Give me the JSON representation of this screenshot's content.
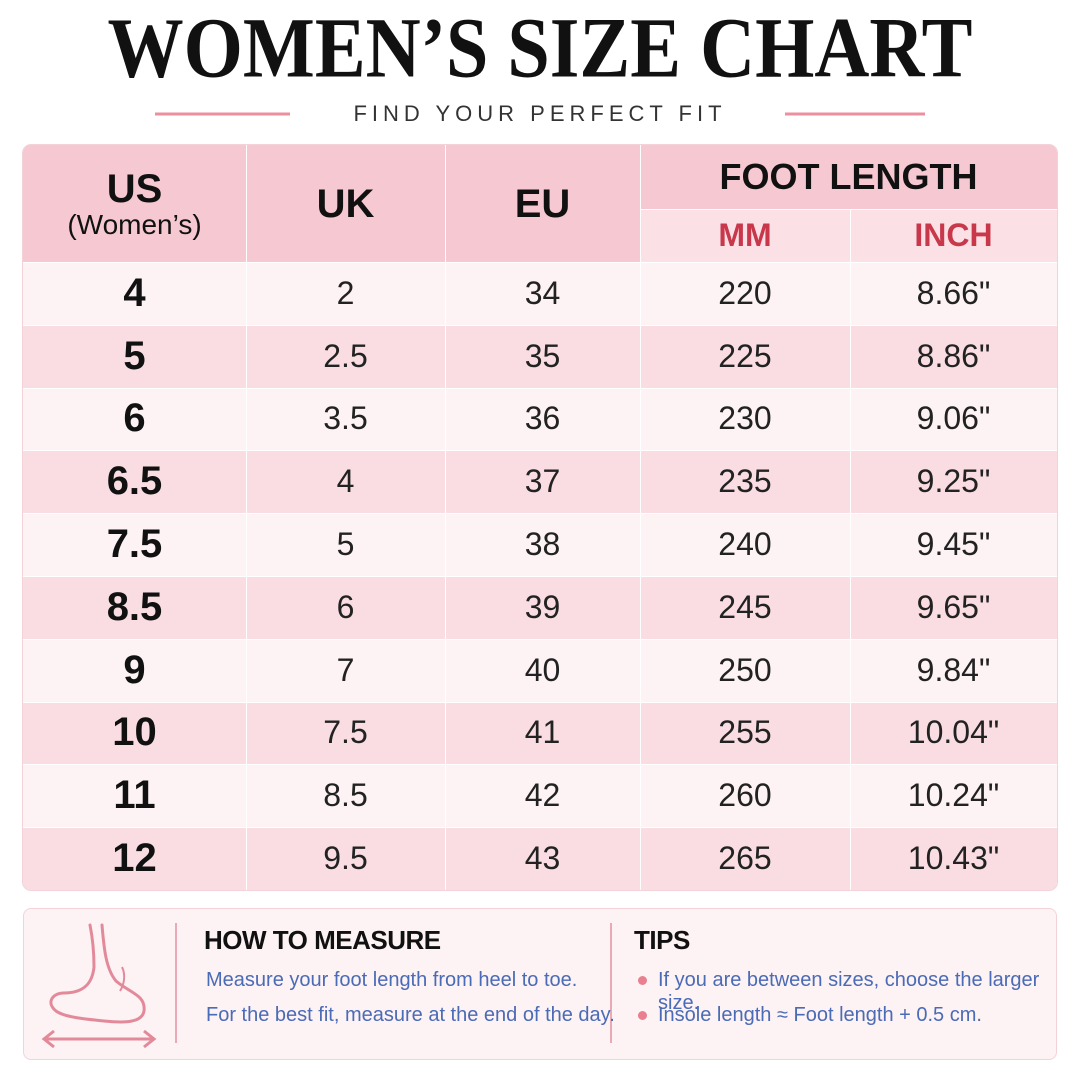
{
  "header": {
    "title": "WOMEN’S SIZE CHART",
    "subtitle": "FIND YOUR PERFECT FIT"
  },
  "table": {
    "headers": {
      "us": "US",
      "us_note": "(Women’s)",
      "uk": "UK",
      "eu": "EU",
      "foot_length": "FOOT LENGTH",
      "mm": "MM",
      "inch": "INCH"
    },
    "rows": [
      [
        "4",
        "2",
        "34",
        "220",
        "8.66\""
      ],
      [
        "5",
        "2.5",
        "35",
        "225",
        "8.86\""
      ],
      [
        "6",
        "3.5",
        "36",
        "230",
        "9.06\""
      ],
      [
        "6.5",
        "4",
        "37",
        "235",
        "9.25\""
      ],
      [
        "7.5",
        "5",
        "38",
        "240",
        "9.45\""
      ],
      [
        "8.5",
        "6",
        "39",
        "245",
        "9.65\""
      ],
      [
        "9",
        "7",
        "40",
        "250",
        "9.84\""
      ],
      [
        "10",
        "7.5",
        "41",
        "255",
        "10.04\""
      ],
      [
        "11",
        "8.5",
        "42",
        "260",
        "10.24\""
      ],
      [
        "12",
        "9.5",
        "43",
        "265",
        "10.43\""
      ]
    ]
  },
  "how_to_measure": {
    "title": "HOW TO MEASURE",
    "lines": [
      "Measure your foot length from heel to toe.",
      "For the best fit, measure at the end of the day."
    ]
  },
  "tips": {
    "title": "TIPS",
    "items": [
      "If you are between sizes, choose the larger size.",
      "Insole length ≈ Foot length + 0.5 cm."
    ]
  }
}
